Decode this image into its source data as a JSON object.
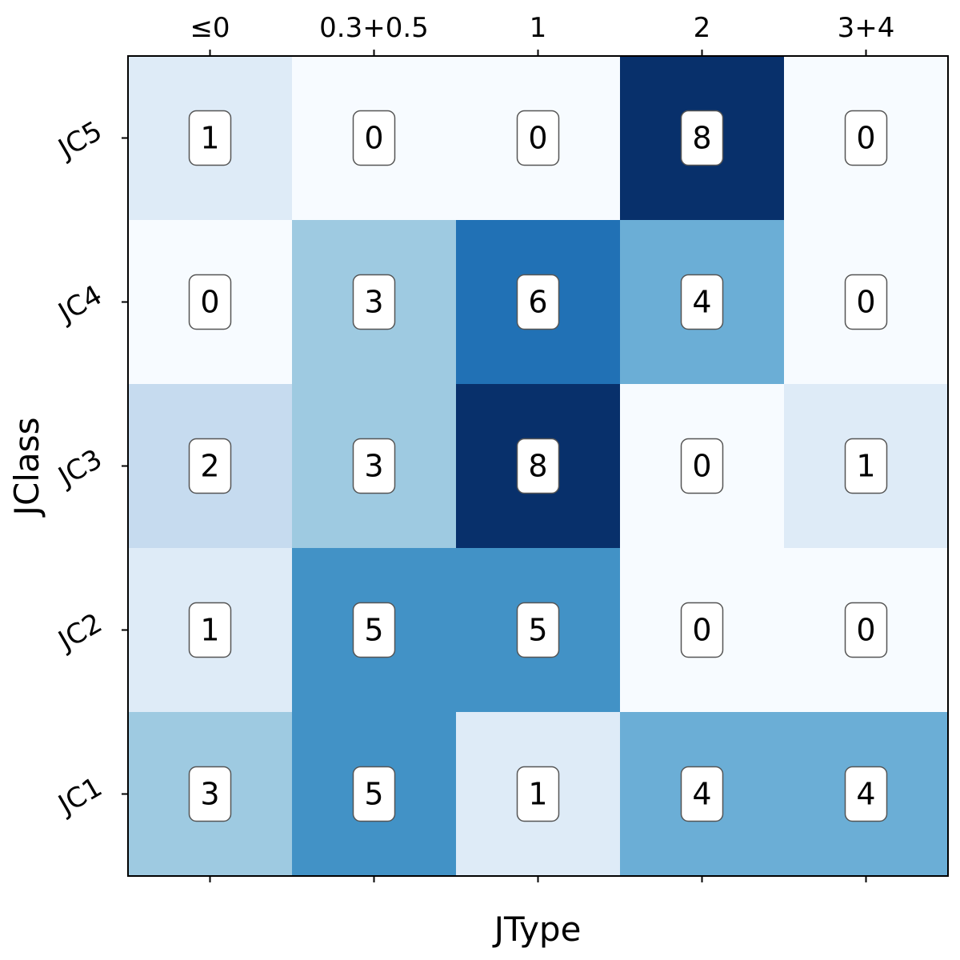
{
  "chart_data": {
    "type": "heatmap",
    "title": "",
    "xlabel": "JType",
    "ylabel": "JClass",
    "x_categories": [
      "≤0",
      "0.3+0.5",
      "1",
      "2",
      "3+4"
    ],
    "y_categories": [
      "JC5",
      "JC4",
      "JC3",
      "JC2",
      "JC1"
    ],
    "values": [
      [
        1,
        0,
        0,
        8,
        0
      ],
      [
        0,
        3,
        6,
        4,
        0
      ],
      [
        2,
        3,
        8,
        0,
        1
      ],
      [
        1,
        5,
        5,
        0,
        0
      ],
      [
        3,
        5,
        1,
        4,
        4
      ]
    ],
    "colormap": "Blues",
    "color_range": [
      0,
      8
    ],
    "colors": {
      "0": "#f7fbff",
      "1": "#deebf7",
      "2": "#c6dbef",
      "3": "#9ecae1",
      "4": "#6baed6",
      "5": "#4292c6",
      "6": "#2171b5",
      "8": "#08306b"
    },
    "x_tick_position": "top-and-bottom",
    "y_tick_rotation": "rotated",
    "cell_annotations": "boxed"
  }
}
